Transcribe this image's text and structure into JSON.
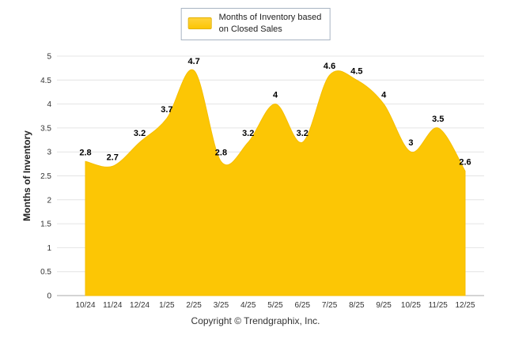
{
  "legend": {
    "line1": "Months of Inventory based",
    "line2": "on Closed Sales",
    "swatch_color": "#fcc605"
  },
  "footer": {
    "copyright": "Copyright © Trendgraphix, Inc."
  },
  "chart_data": {
    "type": "area",
    "title": "",
    "series_name": "Months of Inventory based on Closed Sales",
    "xlabel": "",
    "ylabel": "Months of Inventory",
    "categories": [
      "10/24",
      "11/24",
      "12/24",
      "1/25",
      "2/25",
      "3/25",
      "4/25",
      "5/25",
      "6/25",
      "7/25",
      "8/25",
      "9/25",
      "10/25",
      "11/25",
      "12/25"
    ],
    "values": [
      2.8,
      2.7,
      3.2,
      3.7,
      4.7,
      2.8,
      3.2,
      4,
      3.2,
      4.6,
      4.5,
      4,
      3,
      3.5,
      2.6
    ],
    "ylim": [
      0,
      5
    ],
    "ytick_step": 0.5,
    "grid": true,
    "legend_position": "top",
    "fill_color": "#fcc605",
    "line_color": "#f6be00",
    "label_color": "#000000",
    "grid_color": "#e4e4e4",
    "axis_color": "#aaaaaa",
    "tick_color": "#333333"
  }
}
